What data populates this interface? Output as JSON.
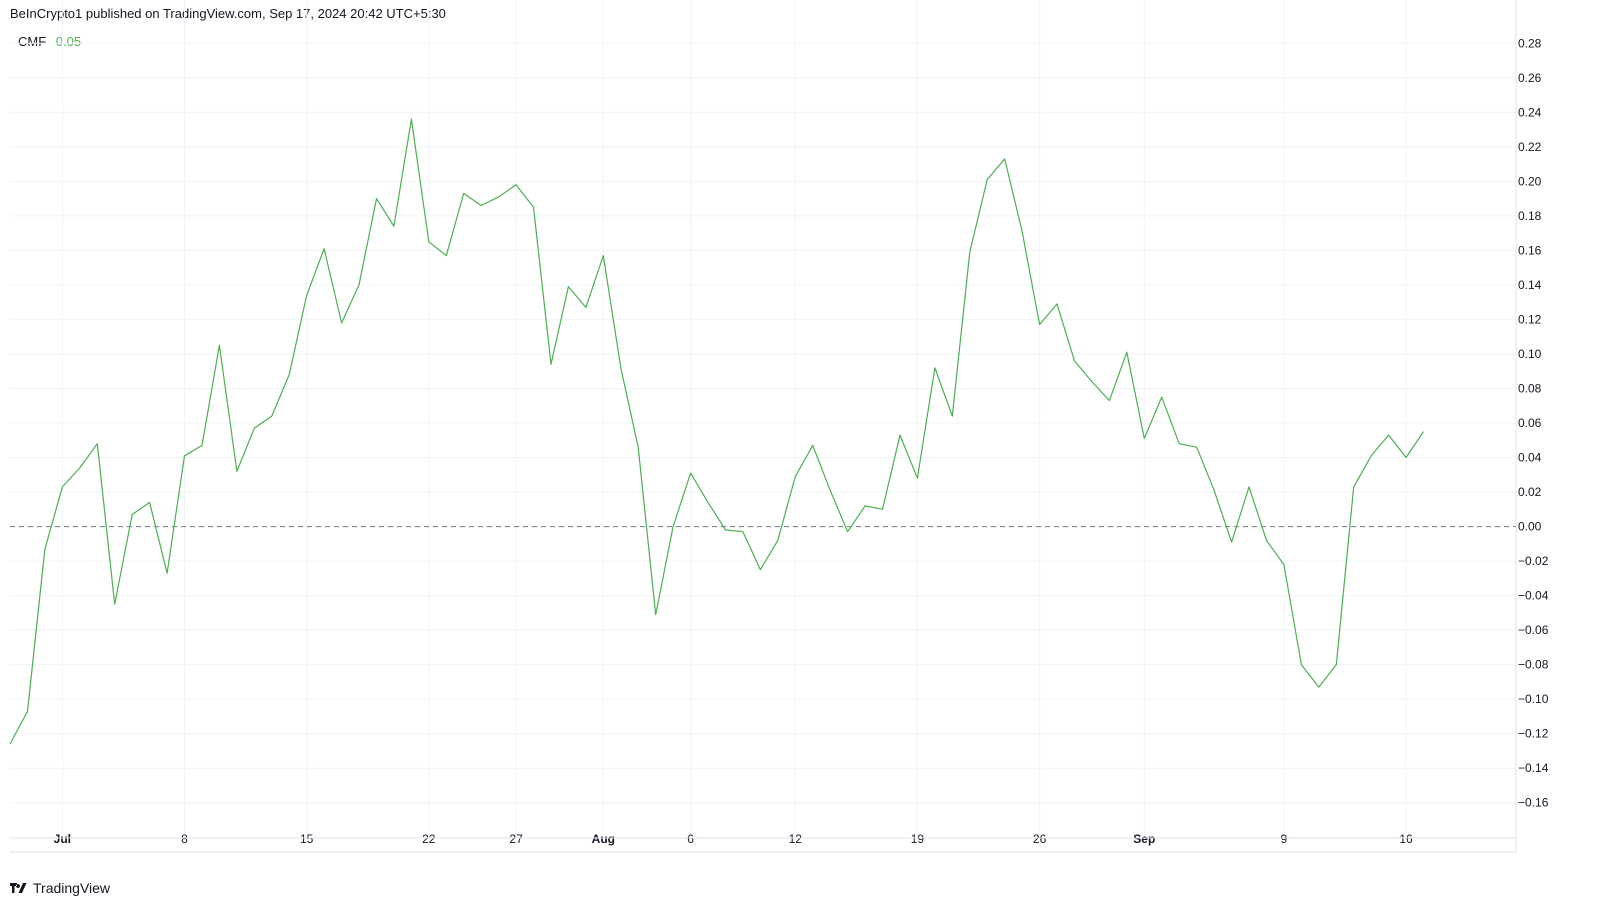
{
  "header": {
    "published": "BeInCrypto1 published on TradingView.com, Sep 17, 2024 20:42 UTC+5:30"
  },
  "legend": {
    "name": "CMF",
    "value": "0.05"
  },
  "footer": {
    "brand": "TradingView"
  },
  "colors": {
    "series": "#4caf50",
    "grid": "#f0f3fa",
    "zero_line": "#787b86",
    "axis_text": "#131722"
  },
  "chart_data": {
    "type": "line",
    "ylim": [
      -0.17,
      0.29
    ],
    "xlim": [
      0,
      86.3
    ],
    "grid": true,
    "y_ticks": [
      0.28,
      0.26,
      0.24,
      0.22,
      0.2,
      0.18,
      0.16,
      0.14,
      0.12,
      0.1,
      0.08,
      0.06,
      0.04,
      0.02,
      0.0,
      -0.02,
      -0.04,
      -0.06,
      -0.08,
      -0.1,
      -0.12,
      -0.14,
      -0.16
    ],
    "y_tick_labels": [
      "0.28",
      "0.26",
      "0.24",
      "0.22",
      "0.20",
      "0.18",
      "0.16",
      "0.14",
      "0.12",
      "0.10",
      "0.08",
      "0.06",
      "0.04",
      "0.02",
      "0.00",
      "−0.02",
      "−0.04",
      "−0.06",
      "−0.08",
      "−0.10",
      "−0.12",
      "−0.14",
      "−0.16"
    ],
    "x_ticks": [
      {
        "x": 3,
        "label": "Jul",
        "bold": true
      },
      {
        "x": 10,
        "label": "8",
        "bold": false
      },
      {
        "x": 17,
        "label": "15",
        "bold": false
      },
      {
        "x": 24,
        "label": "22",
        "bold": false
      },
      {
        "x": 29,
        "label": "27",
        "bold": false
      },
      {
        "x": 34,
        "label": "Aug",
        "bold": true
      },
      {
        "x": 39,
        "label": "6",
        "bold": false
      },
      {
        "x": 45,
        "label": "12",
        "bold": false
      },
      {
        "x": 52,
        "label": "19",
        "bold": false
      },
      {
        "x": 59,
        "label": "26",
        "bold": false
      },
      {
        "x": 65,
        "label": "Sep",
        "bold": true
      },
      {
        "x": 73,
        "label": "9",
        "bold": false
      },
      {
        "x": 80,
        "label": "16",
        "bold": false
      }
    ],
    "reference_line": 0.0,
    "series": [
      {
        "x": [
          0,
          1,
          2,
          3,
          4,
          5,
          6,
          7,
          8,
          9,
          10,
          11,
          12,
          13,
          14,
          15,
          16,
          17,
          18,
          19,
          20,
          21,
          22,
          23,
          24,
          25,
          26,
          27,
          28,
          29,
          30,
          31,
          32,
          33,
          34,
          35,
          36,
          37,
          38,
          39,
          40,
          41,
          42,
          43,
          44,
          45,
          46,
          47,
          48,
          49,
          50,
          51,
          52,
          53,
          54,
          55,
          56,
          57,
          58,
          59,
          60,
          61,
          62,
          63,
          64,
          65,
          66,
          67,
          68,
          69,
          70,
          71,
          72,
          73,
          74,
          75,
          76,
          77,
          78,
          79,
          80,
          81
        ],
        "values": [
          -0.126,
          -0.107,
          -0.013,
          0.023,
          0.034,
          0.048,
          -0.045,
          0.007,
          0.014,
          -0.027,
          0.041,
          0.047,
          0.105,
          0.032,
          0.057,
          0.064,
          0.088,
          0.134,
          0.161,
          0.118,
          0.14,
          0.19,
          0.174,
          0.236,
          0.165,
          0.157,
          0.193,
          0.186,
          0.191,
          0.198,
          0.185,
          0.094,
          0.139,
          0.127,
          0.157,
          0.092,
          0.046,
          -0.051,
          0.0,
          0.031,
          0.014,
          -0.002,
          -0.003,
          -0.025,
          -0.008,
          0.029,
          0.047,
          0.021,
          -0.003,
          0.012,
          0.01,
          0.053,
          0.028,
          0.092,
          0.064,
          0.159,
          0.201,
          0.213,
          0.171,
          0.117,
          0.129,
          0.096,
          0.084,
          0.073,
          0.101,
          0.051,
          0.075,
          0.048,
          0.046,
          0.021,
          -0.009,
          0.023,
          -0.008,
          -0.022,
          -0.08,
          -0.093,
          -0.08,
          0.023,
          0.041,
          0.053,
          0.04,
          0.055
        ]
      }
    ]
  }
}
